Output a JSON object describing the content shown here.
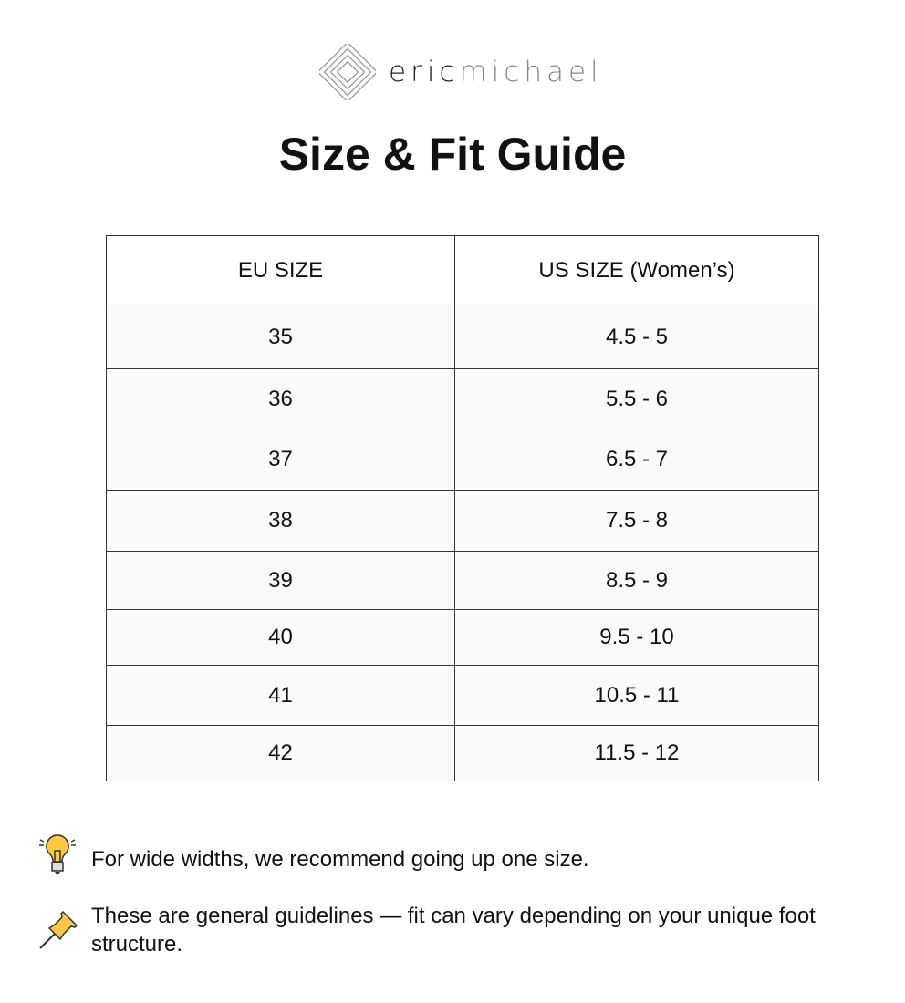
{
  "brand": {
    "bold": "eric",
    "light": "michael"
  },
  "title": "Size & Fit Guide",
  "table": {
    "headers": [
      "EU SIZE",
      "US SIZE (Women’s)"
    ],
    "rows": [
      [
        "35",
        "4.5 - 5"
      ],
      [
        "36",
        "5.5 - 6"
      ],
      [
        "37",
        "6.5 - 7"
      ],
      [
        "38",
        "7.5 - 8"
      ],
      [
        "39",
        "8.5 - 9"
      ],
      [
        "40",
        "9.5 - 10"
      ],
      [
        "41",
        "10.5 - 11"
      ],
      [
        "42",
        "11.5 - 12"
      ]
    ]
  },
  "notes": [
    {
      "icon": "lightbulb-icon",
      "text": "For wide widths, we recommend going up one size."
    },
    {
      "icon": "pushpin-icon",
      "text": "These are general guidelines — fit can vary depending on your unique foot structure."
    }
  ]
}
